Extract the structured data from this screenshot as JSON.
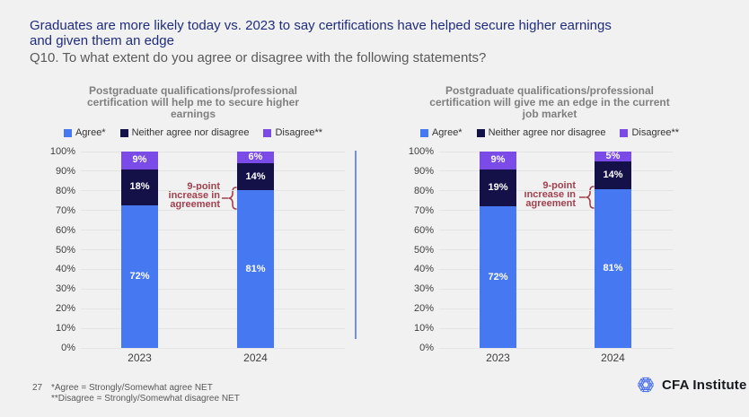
{
  "page": {
    "title_line1": "Graduates are more likely today vs. 2023 to say certifications have helped secure higher earnings",
    "title_line2": "and given them an edge",
    "question": "Q10. To what extent do you agree or disagree with the following statements?",
    "page_number": "27",
    "footnote_line1": "*Agree = Strongly/Somewhat agree NET",
    "footnote_line2": "**Disagree = Strongly/Somewhat disagree NET",
    "brand": "CFA Institute"
  },
  "colors": {
    "background": "#f1f1f2",
    "title": "#1f2d7d",
    "subtitle": "#595959",
    "chart_title": "#7f7f7f",
    "axis_label": "#3f3f3f",
    "grid_line": "#e4e4e5",
    "divider": "#6c8df2",
    "annotation": "#a2414d",
    "bar_value_label": "#ffffff",
    "agree": "#4678f2",
    "neither": "#141148",
    "disagree": "#7b4be8",
    "logo_blue": "#4a71f0",
    "logo_text": "#15191e"
  },
  "chart_data": [
    {
      "type": "bar",
      "stacked": true,
      "title": "Postgraduate qualifications/professional certification will help me to secure higher earnings",
      "title_lines": [
        "Postgraduate qualifications/professional",
        "certification will help me to secure higher",
        "earnings"
      ],
      "categories": [
        "2023",
        "2024"
      ],
      "series": [
        {
          "name": "Agree*",
          "color": "#4678f2",
          "values": [
            72,
            81
          ]
        },
        {
          "name": "Neither agree nor disagree",
          "color": "#141148",
          "values": [
            18,
            14
          ]
        },
        {
          "name": "Disagree**",
          "color": "#7b4be8",
          "values": [
            9,
            6
          ]
        }
      ],
      "y_ticks": [
        "0%",
        "10%",
        "20%",
        "30%",
        "40%",
        "50%",
        "60%",
        "70%",
        "80%",
        "90%",
        "100%"
      ],
      "ylim": [
        0,
        100
      ],
      "grid": true,
      "legend_position": "top",
      "annotation_lines": [
        "9-point",
        "increase in",
        "agreement"
      ]
    },
    {
      "type": "bar",
      "stacked": true,
      "title": "Postgraduate qualifications/professional certification will give me an edge in the current job market",
      "title_lines": [
        "Postgraduate qualifications/professional",
        "certification will give me an edge in the current",
        "job market"
      ],
      "categories": [
        "2023",
        "2024"
      ],
      "series": [
        {
          "name": "Agree*",
          "color": "#4678f2",
          "values": [
            72,
            81
          ]
        },
        {
          "name": "Neither agree nor disagree",
          "color": "#141148",
          "values": [
            19,
            14
          ]
        },
        {
          "name": "Disagree**",
          "color": "#7b4be8",
          "values": [
            9,
            5
          ]
        }
      ],
      "y_ticks": [
        "0%",
        "10%",
        "20%",
        "30%",
        "40%",
        "50%",
        "60%",
        "70%",
        "80%",
        "90%",
        "100%"
      ],
      "ylim": [
        0,
        100
      ],
      "grid": true,
      "legend_position": "top",
      "annotation_lines": [
        "9-point",
        "increase in",
        "agreement"
      ]
    }
  ]
}
